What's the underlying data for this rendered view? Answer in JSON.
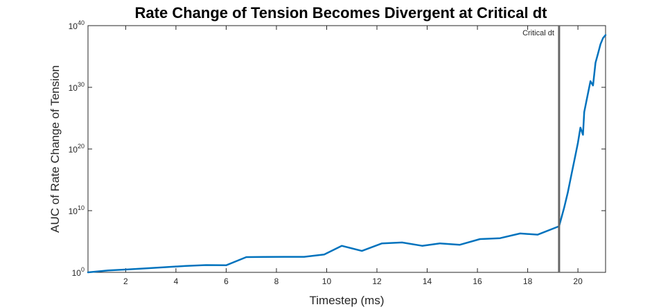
{
  "chart_data": {
    "type": "line",
    "title": "Rate Change of Tension Becomes Divergent at Critical dt",
    "xlabel": "Timestep (ms)",
    "ylabel": "AUC of Rate Change of Tension",
    "xlim": [
      0.5,
      21.1
    ],
    "ylim_log10": [
      0,
      40
    ],
    "yscale": "log",
    "grid": false,
    "x_ticks": [
      "2",
      "4",
      "6",
      "8",
      "10",
      "12",
      "14",
      "16",
      "18",
      "20"
    ],
    "y_ticks": [
      {
        "base": "10",
        "exp": "0"
      },
      {
        "base": "10",
        "exp": "10"
      },
      {
        "base": "10",
        "exp": "20"
      },
      {
        "base": "10",
        "exp": "30"
      },
      {
        "base": "10",
        "exp": "40"
      }
    ],
    "series": [
      {
        "color": "#0072BD",
        "x": [
          0.5,
          1.3,
          2.1,
          2.8,
          3.6,
          4.4,
          5.2,
          6.0,
          6.8,
          7.5,
          8.3,
          9.1,
          9.9,
          10.6,
          11.4,
          12.2,
          13.0,
          13.8,
          14.5,
          15.3,
          16.1,
          16.9,
          17.7,
          18.4,
          19.25,
          19.45,
          19.6,
          19.75,
          19.9,
          20.0,
          20.1,
          20.2,
          20.25,
          20.35,
          20.5,
          20.6,
          20.7,
          20.8,
          20.9,
          21.0,
          21.1
        ],
        "y": [
          1.0,
          2.0,
          3.0,
          4.5,
          7.0,
          11.0,
          15.0,
          14.0,
          300.0,
          320.0,
          330.0,
          330.0,
          800.0,
          20000.0,
          3000.0,
          50000.0,
          70000.0,
          20000.0,
          50000.0,
          30000.0,
          250000.0,
          350000.0,
          2000000.0,
          1300000.0,
          30000000.0,
          30000000000.0,
          10000000000000.0,
          1e+16,
          1e+19,
          1e+21,
          3e+23,
          2e+22,
          1e+26,
          1e+28,
          1e+31,
          2e+30,
          1e+34,
          3e+35,
          1e+37,
          1e+38,
          3e+38
        ]
      }
    ],
    "annotations": [
      {
        "type": "vertical-line",
        "x": 19.25,
        "color": "#666666",
        "text": "Critical dt"
      }
    ]
  }
}
